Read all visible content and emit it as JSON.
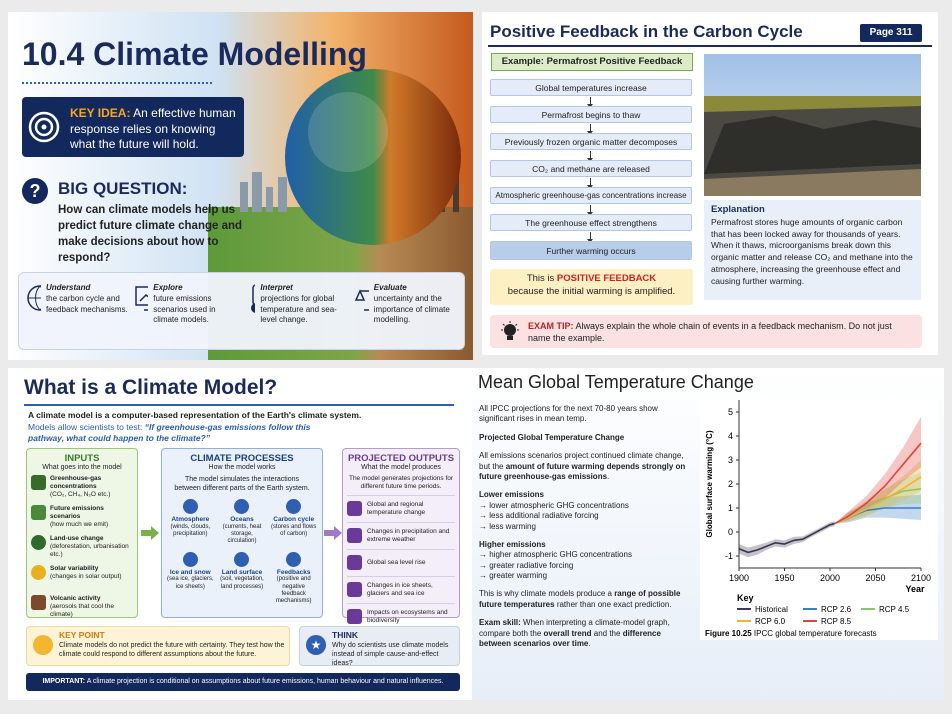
{
  "slides": [
    {
      "title": "10.4 Climate Modelling",
      "key_idea": {
        "label": "KEY IDEA:",
        "text": "An effective human response relies on knowing what the future will hold."
      },
      "big_question": {
        "label": "BIG QUESTION:",
        "text": "How can climate models help us predict future climate change and make decisions about how to respond?"
      },
      "aims": [
        {
          "title": "Understand",
          "text": "the carbon cycle and feedback mechanisms."
        },
        {
          "title": "Explore",
          "text": "future emissions scenarios used in climate models."
        },
        {
          "title": "Interpret",
          "text": "projections for global temperature and sea-level change."
        },
        {
          "title": "Evaluate",
          "text": "uncertainty and the importance of climate modelling."
        }
      ]
    },
    {
      "title": "Positive Feedback in the Carbon Cycle",
      "page": "Page 311",
      "example": "Example: Permafrost Positive Feedback",
      "steps": [
        "Global temperatures increase",
        "Permafrost begins to thaw",
        "Previously frozen organic matter decomposes",
        "CO₂ and methane are released",
        "Atmospheric greenhouse-gas concentrations increase",
        "The greenhouse effect strengthens",
        "Further warming occurs"
      ],
      "conclusion": {
        "text": "This is",
        "highlight": "POSITIVE FEEDBACK",
        "rest": "because the initial warming is amplified."
      },
      "explanation": {
        "heading": "Explanation",
        "text": "Permafrost stores huge amounts of organic carbon that has been locked away for thousands of years. When it thaws, microorganisms break down this organic matter and release CO₂ and methane into the atmosphere, increasing the greenhouse effect and causing further warming."
      },
      "exam_tip": {
        "label": "EXAM TIP:",
        "text": "Always explain the whole chain of events in a feedback mechanism. Do not just name the example."
      }
    },
    {
      "title": "What is a Climate Model?",
      "intro": "A climate model is a computer-based representation of the Earth's climate system.",
      "test": "Models allow scientists to test:",
      "quote": "“If greenhouse-gas emissions follow this pathway, what could happen to the climate?”",
      "inputs": {
        "heading": "INPUTS",
        "sub": "What goes into the model",
        "items": [
          {
            "title": "Greenhouse-gas concentrations",
            "text": "(CO₂, CH₄, N₂O etc.)"
          },
          {
            "title": "Future emissions scenarios",
            "text": "(how much we emit)"
          },
          {
            "title": "Land-use change",
            "text": "(deforestation, urbanisation etc.)"
          },
          {
            "title": "Solar variability",
            "text": "(changes in solar output)"
          },
          {
            "title": "Volcanic activity",
            "text": "(aerosols that cool the climate)"
          }
        ]
      },
      "processes": {
        "heading": "CLIMATE PROCESSES",
        "sub": "How the model works",
        "text": "The model simulates the interactions between different parts of the Earth system.",
        "items": [
          {
            "title": "Atmosphere",
            "text": "(winds, clouds, precipitation)"
          },
          {
            "title": "Oceans",
            "text": "(currents, heat storage, circulation)"
          },
          {
            "title": "Carbon cycle",
            "text": "(stores and flows of carbon)"
          },
          {
            "title": "Ice and snow",
            "text": "(sea ice, glaciers, ice sheets)"
          },
          {
            "title": "Land surface",
            "text": "(soil, vegetation, land processes)"
          },
          {
            "title": "Feedbacks",
            "text": "(positive and negative feedback mechanisms)"
          }
        ]
      },
      "outputs": {
        "heading": "PROJECTED OUTPUTS",
        "sub": "What the model produces",
        "text": "The model generates projections for different future time periods.",
        "items": [
          "Global and regional temperature change",
          "Changes in precipitation and extreme weather",
          "Global sea level rise",
          "Changes in ice sheets, glaciers and sea ice",
          "Impacts on ecosystems and biodiversity"
        ]
      },
      "key_point": {
        "label": "KEY POINT",
        "text": "Climate models do not predict the future with certainty. They test how the climate could respond to different assumptions about the future."
      },
      "think": {
        "label": "THINK",
        "text": "Why do scientists use climate models instead of simple cause-and-effect ideas?"
      },
      "important": {
        "label": "IMPORTANT:",
        "text": "A climate projection is conditional on assumptions about future emissions, human behaviour and natural influences."
      }
    },
    {
      "title": "Mean Global Temperature Change",
      "p1": "All IPCC projections for the next 70-80 years show significant rises in mean temp.",
      "heading": "Projected Global Temperature Change",
      "p2": [
        "All emissions scenarios project continued climate change, but the",
        "amount of future warming depends strongly on future greenhouse-gas emissions",
        "."
      ],
      "lower": {
        "heading": "Lower emissions",
        "items": [
          "→ lower atmospheric GHG concentrations",
          "→ less additional radiative forcing",
          "→ less warming"
        ]
      },
      "higher": {
        "heading": "Higher emissions",
        "items": [
          "→ higher atmospheric GHG concentrations",
          "→ greater radiative forcing",
          "→ greater warming"
        ]
      },
      "p3": [
        "This is why climate models produce a",
        "range of possible future temperatures",
        "rather than one exact prediction."
      ],
      "p4": [
        "Exam skill:",
        "When interpreting a climate-model graph, compare both the",
        "overall trend",
        "and the",
        "difference between scenarios over time",
        "."
      ]
    }
  ],
  "chart_data": {
    "type": "line",
    "x_label": "Year",
    "y_label": "Global surface warming (°C)",
    "legend_title": "Key",
    "caption_label": "Figure 10.25",
    "caption": "IPCC global temperature forecasts",
    "xlim": [
      1900,
      2100
    ],
    "xticks": [
      1900,
      1950,
      2000,
      2050,
      2100
    ],
    "ylim": [
      -1.5,
      5.5
    ],
    "yticks": [
      -1,
      0,
      1,
      2,
      3,
      4,
      5
    ],
    "series": [
      {
        "name": "Historical",
        "color": "#3d3551",
        "x": [
          1900,
          1910,
          1920,
          1930,
          1940,
          1950,
          1960,
          1970,
          1980,
          1990,
          2000,
          2005
        ],
        "values": [
          -0.7,
          -0.85,
          -0.75,
          -0.6,
          -0.45,
          -0.5,
          -0.35,
          -0.3,
          -0.1,
          0.1,
          0.3,
          0.35
        ],
        "low": [
          -0.9,
          -1.05,
          -0.95,
          -0.75,
          -0.6,
          -0.65,
          -0.5,
          -0.42,
          -0.2,
          0.0,
          0.2,
          0.25
        ],
        "high": [
          -0.5,
          -0.65,
          -0.55,
          -0.45,
          -0.3,
          -0.35,
          -0.2,
          -0.18,
          0.0,
          0.2,
          0.4,
          0.45
        ]
      },
      {
        "name": "RCP 2.6",
        "color": "#3a7fc2",
        "x": [
          2005,
          2020,
          2040,
          2060,
          2080,
          2100
        ],
        "values": [
          0.35,
          0.6,
          0.9,
          1.0,
          1.0,
          1.0
        ],
        "low": [
          0.35,
          0.4,
          0.6,
          0.6,
          0.55,
          0.5
        ],
        "high": [
          0.35,
          0.8,
          1.2,
          1.45,
          1.5,
          1.55
        ]
      },
      {
        "name": "RCP 4.5",
        "color": "#8dc66a",
        "x": [
          2005,
          2020,
          2040,
          2060,
          2080,
          2100
        ],
        "values": [
          0.35,
          0.6,
          1.0,
          1.4,
          1.7,
          1.8
        ],
        "low": [
          0.35,
          0.45,
          0.7,
          1.0,
          1.15,
          1.2
        ],
        "high": [
          0.35,
          0.8,
          1.3,
          1.8,
          2.2,
          2.5
        ]
      },
      {
        "name": "RCP 6.0",
        "color": "#f0b23a",
        "x": [
          2005,
          2020,
          2040,
          2060,
          2080,
          2100
        ],
        "values": [
          0.35,
          0.6,
          0.95,
          1.35,
          1.8,
          2.3
        ],
        "low": [
          0.35,
          0.45,
          0.65,
          1.0,
          1.3,
          1.7
        ],
        "high": [
          0.35,
          0.8,
          1.25,
          1.75,
          2.3,
          3.0
        ]
      },
      {
        "name": "RCP 8.5",
        "color": "#e0463a",
        "x": [
          2005,
          2020,
          2040,
          2060,
          2080,
          2100
        ],
        "values": [
          0.35,
          0.65,
          1.2,
          1.9,
          2.8,
          3.7
        ],
        "low": [
          0.35,
          0.5,
          0.9,
          1.4,
          2.1,
          2.7
        ],
        "high": [
          0.35,
          0.85,
          1.5,
          2.4,
          3.5,
          4.8
        ]
      }
    ]
  }
}
